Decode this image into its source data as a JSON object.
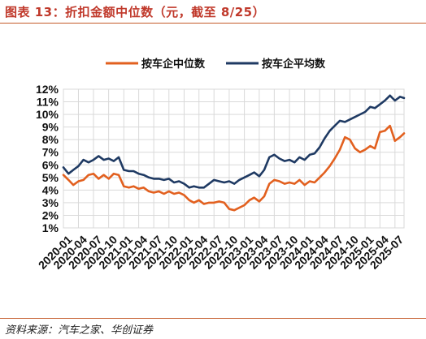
{
  "figure": {
    "title": "图表 13：折扣金额中位数（元，截至 8/25）",
    "source": "资料来源：汽车之家、华创证券"
  },
  "colors": {
    "median": "#e2601f",
    "mean": "#1f3a63",
    "grid": "#d9d9d9",
    "rule": "#c45a2a"
  },
  "chart_data": {
    "type": "line",
    "title": "",
    "xlabel": "",
    "ylabel": "",
    "ylim": [
      1,
      12
    ],
    "y_unit": "%",
    "grid": true,
    "legend_position": "top",
    "x_tick_labels": [
      "2020-01",
      "2020-04",
      "2020-07",
      "2020-10",
      "2021-01",
      "2021-04",
      "2021-07",
      "2021-10",
      "2022-01",
      "2022-04",
      "2022-07",
      "2022-10",
      "2023-01",
      "2023-04",
      "2023-07",
      "2023-10",
      "2024-01",
      "2024-04",
      "2024-07",
      "2024-10",
      "2025-01",
      "2025-04",
      "2025-07"
    ],
    "y_tick_labels": [
      "1%",
      "2%",
      "3%",
      "4%",
      "5%",
      "6%",
      "7%",
      "8%",
      "9%",
      "10%",
      "11%",
      "12%"
    ],
    "series": [
      {
        "name": "按车企中位数",
        "color": "#e2601f",
        "points": [
          [
            "2020-01-01",
            5.2
          ],
          [
            "2020-02-01",
            4.8
          ],
          [
            "2020-03-01",
            4.4
          ],
          [
            "2020-04-01",
            4.7
          ],
          [
            "2020-05-01",
            4.8
          ],
          [
            "2020-06-01",
            5.2
          ],
          [
            "2020-07-01",
            5.3
          ],
          [
            "2020-08-01",
            4.9
          ],
          [
            "2020-09-01",
            5.2
          ],
          [
            "2020-10-01",
            4.9
          ],
          [
            "2020-11-01",
            5.3
          ],
          [
            "2020-12-01",
            5.2
          ],
          [
            "2021-01-01",
            4.3
          ],
          [
            "2021-02-01",
            4.2
          ],
          [
            "2021-03-01",
            4.3
          ],
          [
            "2021-04-01",
            4.1
          ],
          [
            "2021-05-01",
            4.2
          ],
          [
            "2021-06-01",
            3.9
          ],
          [
            "2021-07-01",
            3.8
          ],
          [
            "2021-08-01",
            3.9
          ],
          [
            "2021-09-01",
            3.7
          ],
          [
            "2021-10-01",
            3.9
          ],
          [
            "2021-11-01",
            3.7
          ],
          [
            "2021-12-01",
            3.8
          ],
          [
            "2022-01-01",
            3.6
          ],
          [
            "2022-02-01",
            3.2
          ],
          [
            "2022-03-01",
            3.0
          ],
          [
            "2022-04-01",
            3.2
          ],
          [
            "2022-05-01",
            2.9
          ],
          [
            "2022-06-01",
            3.0
          ],
          [
            "2022-07-01",
            3.0
          ],
          [
            "2022-08-01",
            3.1
          ],
          [
            "2022-09-01",
            3.0
          ],
          [
            "2022-10-01",
            2.5
          ],
          [
            "2022-11-01",
            2.4
          ],
          [
            "2022-12-01",
            2.6
          ],
          [
            "2023-01-01",
            2.8
          ],
          [
            "2023-02-01",
            3.2
          ],
          [
            "2023-03-01",
            3.4
          ],
          [
            "2023-04-01",
            3.1
          ],
          [
            "2023-05-01",
            3.5
          ],
          [
            "2023-06-01",
            4.5
          ],
          [
            "2023-07-01",
            4.8
          ],
          [
            "2023-08-01",
            4.7
          ],
          [
            "2023-09-01",
            4.5
          ],
          [
            "2023-10-01",
            4.6
          ],
          [
            "2023-11-01",
            4.5
          ],
          [
            "2023-12-01",
            4.8
          ],
          [
            "2024-01-01",
            4.4
          ],
          [
            "2024-02-01",
            4.7
          ],
          [
            "2024-03-01",
            4.6
          ],
          [
            "2024-04-01",
            5.0
          ],
          [
            "2024-05-01",
            5.4
          ],
          [
            "2024-06-01",
            5.9
          ],
          [
            "2024-07-01",
            6.5
          ],
          [
            "2024-08-01",
            7.2
          ],
          [
            "2024-09-01",
            8.2
          ],
          [
            "2024-10-01",
            8.0
          ],
          [
            "2024-11-01",
            7.3
          ],
          [
            "2024-12-01",
            7.0
          ],
          [
            "2025-01-01",
            7.2
          ],
          [
            "2025-02-01",
            7.5
          ],
          [
            "2025-03-01",
            7.3
          ],
          [
            "2025-04-01",
            8.6
          ],
          [
            "2025-05-01",
            8.7
          ],
          [
            "2025-06-01",
            9.1
          ],
          [
            "2025-07-01",
            7.9
          ],
          [
            "2025-08-01",
            8.2
          ],
          [
            "2025-08-25",
            8.5
          ]
        ]
      },
      {
        "name": "按车企平均数",
        "color": "#1f3a63",
        "points": [
          [
            "2020-01-01",
            5.8
          ],
          [
            "2020-02-01",
            5.3
          ],
          [
            "2020-03-01",
            5.6
          ],
          [
            "2020-04-01",
            5.9
          ],
          [
            "2020-05-01",
            6.4
          ],
          [
            "2020-06-01",
            6.2
          ],
          [
            "2020-07-01",
            6.4
          ],
          [
            "2020-08-01",
            6.7
          ],
          [
            "2020-09-01",
            6.4
          ],
          [
            "2020-10-01",
            6.5
          ],
          [
            "2020-11-01",
            6.3
          ],
          [
            "2020-12-01",
            6.6
          ],
          [
            "2021-01-01",
            5.6
          ],
          [
            "2021-02-01",
            5.5
          ],
          [
            "2021-03-01",
            5.5
          ],
          [
            "2021-04-01",
            5.3
          ],
          [
            "2021-05-01",
            5.2
          ],
          [
            "2021-06-01",
            5.0
          ],
          [
            "2021-07-01",
            4.9
          ],
          [
            "2021-08-01",
            4.9
          ],
          [
            "2021-09-01",
            4.8
          ],
          [
            "2021-10-01",
            4.9
          ],
          [
            "2021-11-01",
            4.6
          ],
          [
            "2021-12-01",
            4.7
          ],
          [
            "2022-01-01",
            4.5
          ],
          [
            "2022-02-01",
            4.2
          ],
          [
            "2022-03-01",
            4.3
          ],
          [
            "2022-04-01",
            4.2
          ],
          [
            "2022-05-01",
            4.2
          ],
          [
            "2022-06-01",
            4.5
          ],
          [
            "2022-07-01",
            4.8
          ],
          [
            "2022-08-01",
            4.7
          ],
          [
            "2022-09-01",
            4.6
          ],
          [
            "2022-10-01",
            4.7
          ],
          [
            "2022-11-01",
            4.5
          ],
          [
            "2022-12-01",
            4.8
          ],
          [
            "2023-01-01",
            5.0
          ],
          [
            "2023-02-01",
            5.2
          ],
          [
            "2023-03-01",
            5.4
          ],
          [
            "2023-04-01",
            5.1
          ],
          [
            "2023-05-01",
            5.6
          ],
          [
            "2023-06-01",
            6.6
          ],
          [
            "2023-07-01",
            6.8
          ],
          [
            "2023-08-01",
            6.5
          ],
          [
            "2023-09-01",
            6.3
          ],
          [
            "2023-10-01",
            6.4
          ],
          [
            "2023-11-01",
            6.2
          ],
          [
            "2023-12-01",
            6.6
          ],
          [
            "2024-01-01",
            6.4
          ],
          [
            "2024-02-01",
            6.8
          ],
          [
            "2024-03-01",
            6.9
          ],
          [
            "2024-04-01",
            7.4
          ],
          [
            "2024-05-01",
            8.1
          ],
          [
            "2024-06-01",
            8.7
          ],
          [
            "2024-07-01",
            9.1
          ],
          [
            "2024-08-01",
            9.5
          ],
          [
            "2024-09-01",
            9.4
          ],
          [
            "2024-10-01",
            9.6
          ],
          [
            "2024-11-01",
            9.8
          ],
          [
            "2024-12-01",
            10.0
          ],
          [
            "2025-01-01",
            10.2
          ],
          [
            "2025-02-01",
            10.6
          ],
          [
            "2025-03-01",
            10.5
          ],
          [
            "2025-04-01",
            10.8
          ],
          [
            "2025-05-01",
            11.1
          ],
          [
            "2025-06-01",
            11.5
          ],
          [
            "2025-07-01",
            11.1
          ],
          [
            "2025-08-01",
            11.4
          ],
          [
            "2025-08-25",
            11.3
          ]
        ]
      }
    ]
  }
}
